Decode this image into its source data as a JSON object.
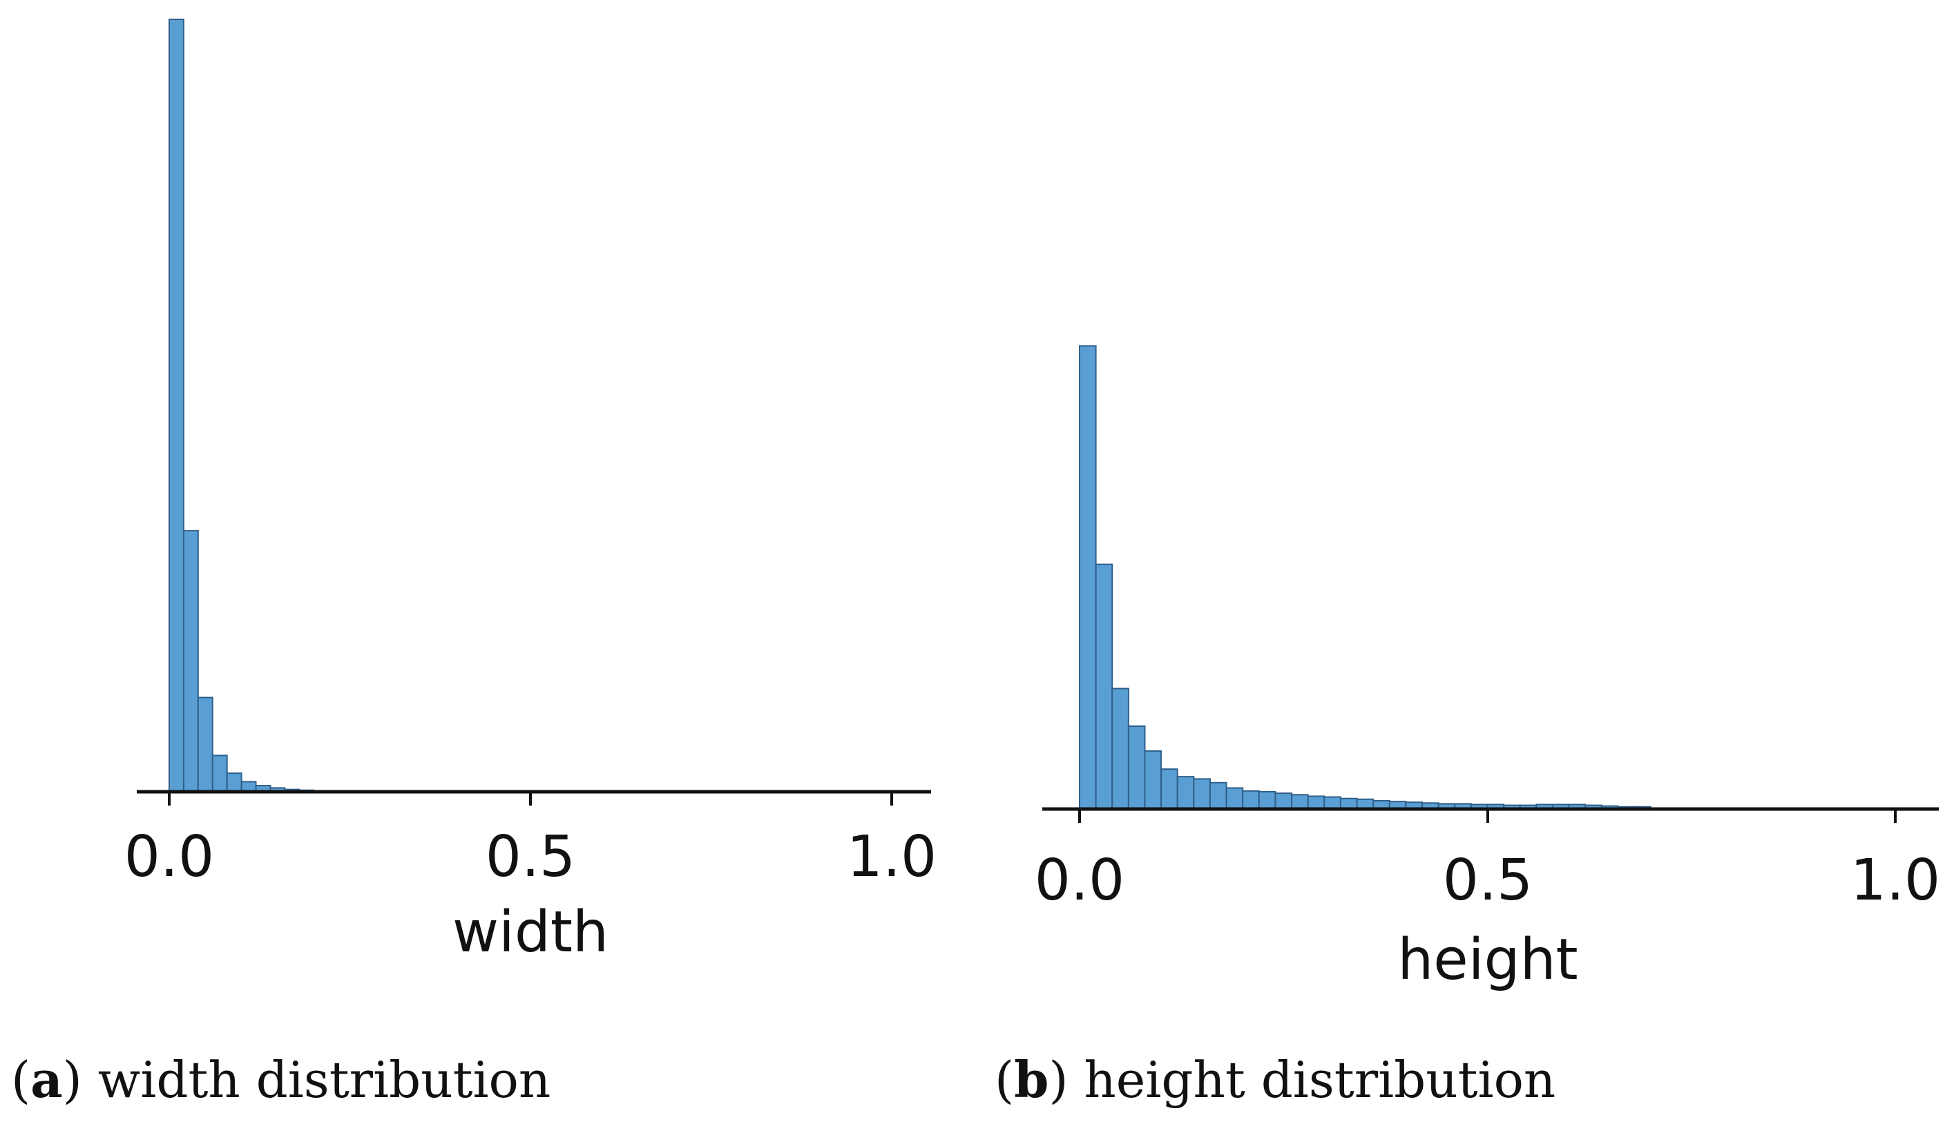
{
  "colors": {
    "bar_fill": "#5a9fd4",
    "bar_edge": "#2f5f8a",
    "axis": "#111111"
  },
  "chart_data": [
    {
      "type": "bar",
      "subplot_label": "a",
      "caption": "width distribution",
      "xlabel": "width",
      "ylabel": "",
      "xlim": [
        -0.05,
        1.05
      ],
      "ylim": [
        0,
        1.0
      ],
      "y_axis_visible": false,
      "grid": false,
      "bin_width": 0.02,
      "xticks": [
        0.0,
        0.5,
        1.0
      ],
      "xtick_labels": [
        "0.0",
        "0.5",
        "1.0"
      ],
      "bin_starts": [
        0.0,
        0.02,
        0.04,
        0.06,
        0.08,
        0.1,
        0.12,
        0.14,
        0.16,
        0.18,
        0.2
      ],
      "values": [
        1.0,
        0.338,
        0.122,
        0.047,
        0.024,
        0.013,
        0.008,
        0.005,
        0.003,
        0.002,
        0.001
      ]
    },
    {
      "type": "bar",
      "subplot_label": "b",
      "caption": "height distribution",
      "xlabel": "height",
      "ylabel": "",
      "xlim": [
        -0.05,
        1.05
      ],
      "ylim": [
        0,
        1.0
      ],
      "y_axis_visible": false,
      "grid": false,
      "bin_width": 0.02,
      "xticks": [
        0.0,
        0.5,
        1.0
      ],
      "xtick_labels": [
        "0.0",
        "0.5",
        "1.0"
      ],
      "bin_starts": [
        0.0,
        0.02,
        0.04,
        0.06,
        0.08,
        0.1,
        0.12,
        0.14,
        0.16,
        0.18,
        0.2,
        0.22,
        0.24,
        0.26,
        0.28,
        0.3,
        0.32,
        0.34,
        0.36,
        0.38,
        0.4,
        0.42,
        0.44,
        0.46,
        0.48,
        0.5,
        0.52,
        0.54,
        0.56,
        0.58,
        0.6,
        0.62,
        0.64,
        0.66,
        0.68
      ],
      "values": [
        0.615,
        0.325,
        0.16,
        0.11,
        0.077,
        0.053,
        0.043,
        0.04,
        0.035,
        0.028,
        0.024,
        0.023,
        0.021,
        0.019,
        0.017,
        0.016,
        0.014,
        0.013,
        0.011,
        0.01,
        0.009,
        0.008,
        0.007,
        0.007,
        0.006,
        0.006,
        0.005,
        0.005,
        0.006,
        0.006,
        0.006,
        0.005,
        0.004,
        0.003,
        0.003
      ]
    }
  ]
}
